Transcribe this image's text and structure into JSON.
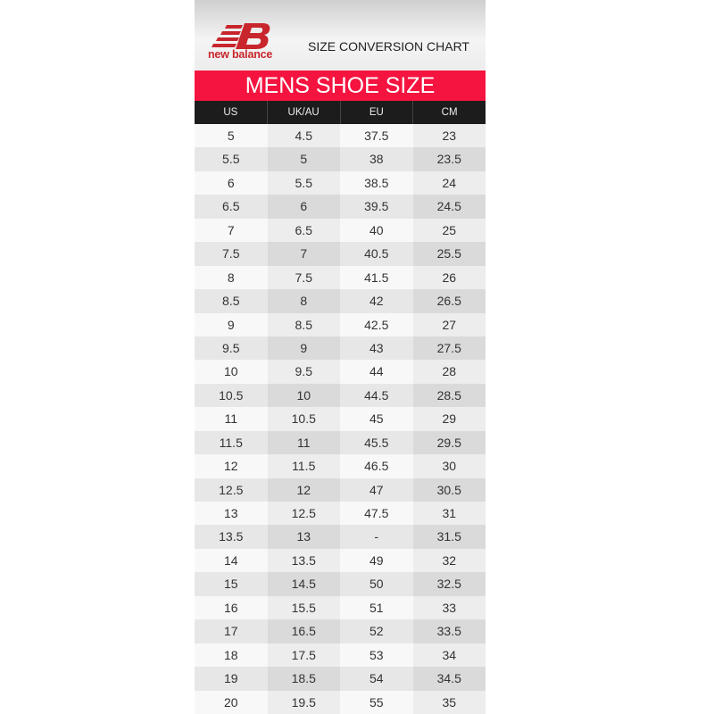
{
  "brand": {
    "name": "new balance",
    "logo_letters": "NB",
    "color": "#c8262c"
  },
  "subtitle": "SIZE CONVERSION CHART",
  "banner": {
    "title": "MENS SHOE SIZE",
    "color": "#f5133f"
  },
  "table": {
    "headers": [
      "US",
      "UK/AU",
      "EU",
      "CM"
    ],
    "rows": [
      [
        "5",
        "4.5",
        "37.5",
        "23"
      ],
      [
        "5.5",
        "5",
        "38",
        "23.5"
      ],
      [
        "6",
        "5.5",
        "38.5",
        "24"
      ],
      [
        "6.5",
        "6",
        "39.5",
        "24.5"
      ],
      [
        "7",
        "6.5",
        "40",
        "25"
      ],
      [
        "7.5",
        "7",
        "40.5",
        "25.5"
      ],
      [
        "8",
        "7.5",
        "41.5",
        "26"
      ],
      [
        "8.5",
        "8",
        "42",
        "26.5"
      ],
      [
        "9",
        "8.5",
        "42.5",
        "27"
      ],
      [
        "9.5",
        "9",
        "43",
        "27.5"
      ],
      [
        "10",
        "9.5",
        "44",
        "28"
      ],
      [
        "10.5",
        "10",
        "44.5",
        "28.5"
      ],
      [
        "11",
        "10.5",
        "45",
        "29"
      ],
      [
        "11.5",
        "11",
        "45.5",
        "29.5"
      ],
      [
        "12",
        "11.5",
        "46.5",
        "30"
      ],
      [
        "12.5",
        "12",
        "47",
        "30.5"
      ],
      [
        "13",
        "12.5",
        "47.5",
        "31"
      ],
      [
        "13.5",
        "13",
        "-",
        "31.5"
      ],
      [
        "14",
        "13.5",
        "49",
        "32"
      ],
      [
        "15",
        "14.5",
        "50",
        "32.5"
      ],
      [
        "16",
        "15.5",
        "51",
        "33"
      ],
      [
        "17",
        "16.5",
        "52",
        "33.5"
      ],
      [
        "18",
        "17.5",
        "53",
        "34"
      ],
      [
        "19",
        "18.5",
        "54",
        "34.5"
      ],
      [
        "20",
        "19.5",
        "55",
        "35"
      ]
    ]
  }
}
